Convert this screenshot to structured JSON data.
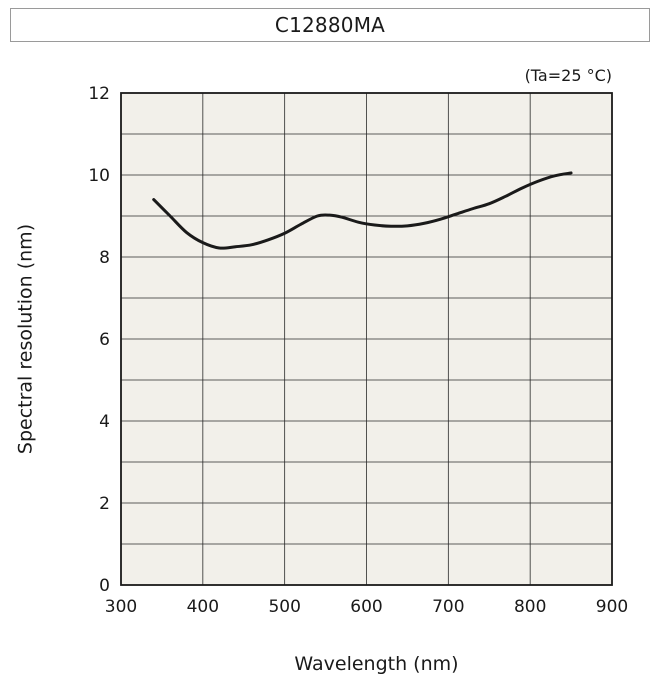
{
  "chart_data": {
    "type": "line",
    "title": "C12880MA",
    "annotation": "(Ta=25 °C)",
    "xlabel": "Wavelength (nm)",
    "ylabel": "Spectral resolution (nm)",
    "xlim": [
      300,
      900
    ],
    "ylim": [
      0,
      12
    ],
    "x_ticks": [
      300,
      400,
      500,
      600,
      700,
      800,
      900
    ],
    "y_ticks": [
      0,
      2,
      4,
      6,
      8,
      10,
      12
    ],
    "grid": true,
    "plot_background": "#f2f0ea",
    "line_color": "#1a1a1a",
    "series": [
      {
        "x": [
          340,
          360,
          380,
          400,
          420,
          440,
          460,
          480,
          500,
          520,
          540,
          555,
          570,
          590,
          610,
          630,
          650,
          670,
          690,
          710,
          730,
          750,
          770,
          790,
          810,
          830,
          850
        ],
        "values": [
          9.4,
          9.0,
          8.6,
          8.35,
          8.22,
          8.25,
          8.3,
          8.42,
          8.58,
          8.8,
          9.0,
          9.02,
          8.97,
          8.85,
          8.78,
          8.75,
          8.76,
          8.82,
          8.92,
          9.05,
          9.18,
          9.3,
          9.48,
          9.68,
          9.85,
          9.98,
          10.05
        ]
      }
    ]
  }
}
